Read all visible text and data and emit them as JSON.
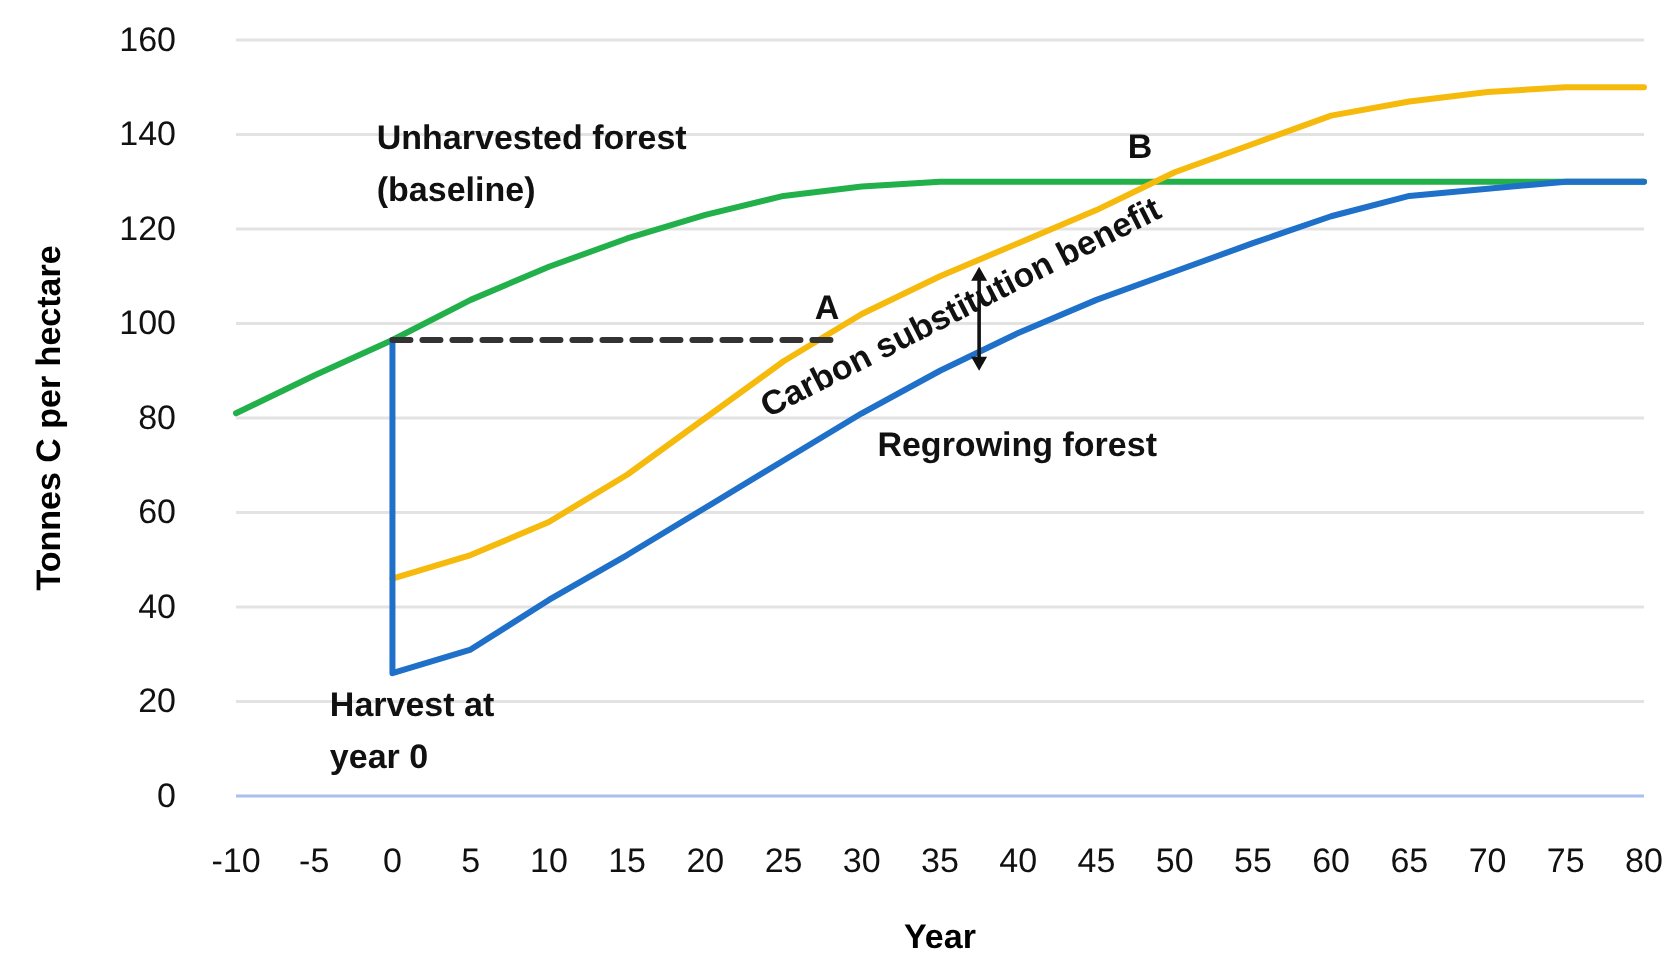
{
  "chart_data": {
    "type": "line",
    "xlabel": "Year",
    "ylabel": "Tonnes C per hectare",
    "xlim": [
      -10,
      80
    ],
    "xticks": [
      -10,
      -5,
      0,
      5,
      10,
      15,
      20,
      25,
      30,
      35,
      40,
      45,
      50,
      55,
      60,
      65,
      70,
      75,
      80
    ],
    "ylim": [
      0,
      160
    ],
    "yticks": [
      0,
      20,
      40,
      60,
      80,
      100,
      120,
      140,
      160
    ],
    "grid": "y",
    "marker": "none",
    "series": [
      {
        "color": "#22b04b",
        "x": [
          -10,
          -5,
          0,
          5,
          10,
          15,
          20,
          25,
          30,
          35,
          40,
          45,
          50,
          55,
          60,
          65,
          70,
          75,
          80
        ],
        "values": [
          81,
          89,
          96.5,
          105,
          112,
          118,
          123,
          127,
          129,
          130,
          130,
          130,
          130,
          130,
          130,
          130,
          130,
          130,
          130
        ]
      },
      {
        "color": "#f6ba0c",
        "x": [
          0,
          5,
          10,
          15,
          20,
          25,
          30,
          35,
          40,
          45,
          50,
          55,
          60,
          65,
          70,
          75,
          80
        ],
        "values": [
          46,
          51,
          58,
          68,
          80,
          92,
          102,
          110,
          117,
          124,
          132,
          138,
          144,
          147,
          149,
          150,
          150
        ]
      },
      {
        "color": "#1f70c8",
        "x": [
          0,
          0,
          5,
          10,
          15,
          20,
          25,
          30,
          35,
          40,
          45,
          50,
          55,
          60,
          65,
          70,
          75,
          80
        ],
        "values": [
          96.5,
          26,
          31,
          41.5,
          51,
          61,
          71,
          81,
          90,
          98,
          105,
          111,
          117,
          122.7,
          127,
          128.5,
          130,
          130
        ]
      },
      {
        "color": "#333333",
        "line_style": "dashed",
        "x": [
          0,
          28
        ],
        "values": [
          96.5,
          96.5
        ]
      }
    ],
    "annotations": [
      "Unharvested forest",
      "(baseline)",
      "A",
      "B",
      "Carbon substitution benefit",
      "Regrowing forest",
      "Harvest at",
      "year 0"
    ]
  }
}
